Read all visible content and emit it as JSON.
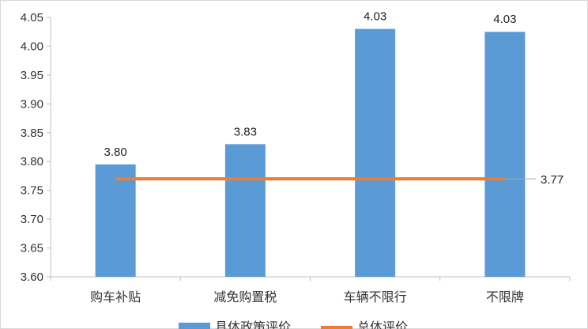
{
  "chart_data": {
    "type": "bar",
    "categories": [
      "购车补贴",
      "减免购置税",
      "车辆不限行",
      "不限牌"
    ],
    "series": [
      {
        "name": "具体政策评价",
        "type": "bar",
        "values": [
          3.795,
          3.83,
          4.03,
          4.025
        ],
        "labels": [
          "3.80",
          "3.83",
          "4.03",
          "4.03"
        ],
        "color": "#5B9BD5"
      },
      {
        "name": "总体评价",
        "type": "line",
        "values": [
          3.77,
          3.77,
          3.77,
          3.77
        ],
        "label": "3.77",
        "color": "#ED7D31"
      }
    ],
    "ylim": [
      3.6,
      4.05
    ],
    "yticks": [
      "3.60",
      "3.65",
      "3.70",
      "3.75",
      "3.80",
      "3.85",
      "3.90",
      "3.95",
      "4.00",
      "4.05"
    ],
    "grid": false,
    "legend_position": "bottom"
  }
}
